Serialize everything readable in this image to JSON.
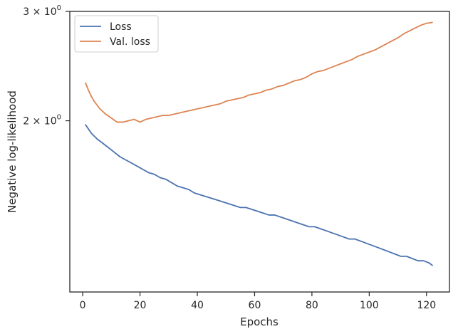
{
  "chart_data": {
    "type": "line",
    "xlabel": "Epochs",
    "ylabel": "Negative log-likelihood",
    "xlim": [
      -4.5,
      128
    ],
    "ylim": [
      1.06,
      3.0
    ],
    "y_scale": "log",
    "x_ticks": [
      0,
      20,
      40,
      60,
      80,
      100,
      120
    ],
    "y_ticks": [
      {
        "value": 3.0,
        "base": "3 × 10",
        "exponent": "0"
      },
      {
        "value": 2.0,
        "base": "2 × 10",
        "exponent": "0"
      }
    ],
    "legend": "top-left",
    "grid": false,
    "series": [
      {
        "name": "Loss",
        "color": "#4c72b0",
        "points": [
          [
            1,
            1.97
          ],
          [
            3,
            1.91
          ],
          [
            5,
            1.87
          ],
          [
            7,
            1.84
          ],
          [
            9,
            1.81
          ],
          [
            11,
            1.78
          ],
          [
            13,
            1.75
          ],
          [
            15,
            1.73
          ],
          [
            17,
            1.71
          ],
          [
            19,
            1.69
          ],
          [
            21,
            1.67
          ],
          [
            23,
            1.65
          ],
          [
            25,
            1.64
          ],
          [
            27,
            1.62
          ],
          [
            29,
            1.61
          ],
          [
            31,
            1.59
          ],
          [
            33,
            1.57
          ],
          [
            35,
            1.56
          ],
          [
            37,
            1.55
          ],
          [
            39,
            1.53
          ],
          [
            41,
            1.52
          ],
          [
            43,
            1.51
          ],
          [
            45,
            1.5
          ],
          [
            47,
            1.49
          ],
          [
            49,
            1.48
          ],
          [
            51,
            1.47
          ],
          [
            53,
            1.46
          ],
          [
            55,
            1.45
          ],
          [
            57,
            1.45
          ],
          [
            59,
            1.44
          ],
          [
            61,
            1.43
          ],
          [
            63,
            1.42
          ],
          [
            65,
            1.41
          ],
          [
            67,
            1.41
          ],
          [
            69,
            1.4
          ],
          [
            71,
            1.39
          ],
          [
            73,
            1.38
          ],
          [
            75,
            1.37
          ],
          [
            77,
            1.36
          ],
          [
            79,
            1.35
          ],
          [
            81,
            1.35
          ],
          [
            83,
            1.34
          ],
          [
            85,
            1.33
          ],
          [
            87,
            1.32
          ],
          [
            89,
            1.31
          ],
          [
            91,
            1.3
          ],
          [
            93,
            1.29
          ],
          [
            95,
            1.29
          ],
          [
            97,
            1.28
          ],
          [
            99,
            1.27
          ],
          [
            101,
            1.26
          ],
          [
            103,
            1.25
          ],
          [
            105,
            1.24
          ],
          [
            107,
            1.23
          ],
          [
            109,
            1.22
          ],
          [
            111,
            1.21
          ],
          [
            113,
            1.21
          ],
          [
            115,
            1.2
          ],
          [
            117,
            1.19
          ],
          [
            119,
            1.19
          ],
          [
            121,
            1.18
          ],
          [
            122,
            1.17
          ]
        ]
      },
      {
        "name": "Val. loss",
        "color": "#dd8452",
        "points": [
          [
            1,
            2.3
          ],
          [
            2,
            2.24
          ],
          [
            3,
            2.19
          ],
          [
            4,
            2.15
          ],
          [
            5,
            2.12
          ],
          [
            6,
            2.09
          ],
          [
            8,
            2.05
          ],
          [
            10,
            2.02
          ],
          [
            12,
            1.99
          ],
          [
            14,
            1.99
          ],
          [
            16,
            2.0
          ],
          [
            18,
            2.01
          ],
          [
            20,
            1.99
          ],
          [
            22,
            2.01
          ],
          [
            24,
            2.02
          ],
          [
            26,
            2.03
          ],
          [
            28,
            2.04
          ],
          [
            30,
            2.04
          ],
          [
            32,
            2.05
          ],
          [
            34,
            2.06
          ],
          [
            36,
            2.07
          ],
          [
            38,
            2.08
          ],
          [
            40,
            2.09
          ],
          [
            42,
            2.1
          ],
          [
            44,
            2.11
          ],
          [
            46,
            2.12
          ],
          [
            48,
            2.13
          ],
          [
            50,
            2.15
          ],
          [
            52,
            2.16
          ],
          [
            54,
            2.17
          ],
          [
            56,
            2.18
          ],
          [
            58,
            2.2
          ],
          [
            60,
            2.21
          ],
          [
            62,
            2.22
          ],
          [
            64,
            2.24
          ],
          [
            66,
            2.25
          ],
          [
            68,
            2.27
          ],
          [
            70,
            2.28
          ],
          [
            72,
            2.3
          ],
          [
            74,
            2.32
          ],
          [
            76,
            2.33
          ],
          [
            78,
            2.35
          ],
          [
            80,
            2.38
          ],
          [
            82,
            2.4
          ],
          [
            84,
            2.41
          ],
          [
            86,
            2.43
          ],
          [
            88,
            2.45
          ],
          [
            90,
            2.47
          ],
          [
            92,
            2.49
          ],
          [
            94,
            2.51
          ],
          [
            96,
            2.54
          ],
          [
            98,
            2.56
          ],
          [
            100,
            2.58
          ],
          [
            102,
            2.6
          ],
          [
            104,
            2.63
          ],
          [
            106,
            2.66
          ],
          [
            108,
            2.69
          ],
          [
            110,
            2.72
          ],
          [
            112,
            2.76
          ],
          [
            114,
            2.79
          ],
          [
            116,
            2.82
          ],
          [
            118,
            2.85
          ],
          [
            120,
            2.87
          ],
          [
            122,
            2.88
          ]
        ]
      }
    ]
  }
}
